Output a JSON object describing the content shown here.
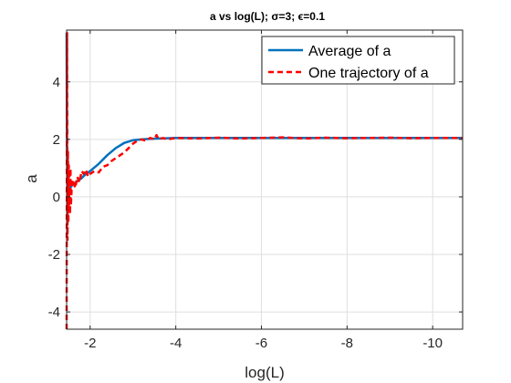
{
  "chart_data": {
    "type": "line",
    "title": "a vs log(L); σ=3; ϵ=0.1",
    "xlabel": "log(L)",
    "ylabel": "a",
    "x_reversed": true,
    "xlim": [
      -1.45,
      -10.7
    ],
    "ylim": [
      -4.6,
      5.8
    ],
    "xticks": [
      -2,
      -4,
      -6,
      -8,
      -10
    ],
    "xtick_labels": [
      "-2",
      "-4",
      "-6",
      "-8",
      "-10"
    ],
    "yticks": [
      -4,
      -2,
      0,
      2,
      4
    ],
    "ytick_labels": [
      "-4",
      "-2",
      "0",
      "2",
      "4"
    ],
    "grid": true,
    "legend_position": "top-right",
    "series": [
      {
        "name": "Average of a",
        "color": "#0072BD",
        "style": "solid",
        "x": [
          -1.45,
          -1.46,
          -1.47,
          -1.48,
          -1.5,
          -1.55,
          -1.6,
          -1.7,
          -1.8,
          -1.9,
          -2.0,
          -2.2,
          -2.4,
          -2.6,
          -2.8,
          -3.0,
          -3.2,
          -3.4,
          -3.6,
          -3.8,
          -4.0,
          -5.0,
          -6.0,
          -7.0,
          -8.0,
          -9.0,
          -10.0,
          -10.7
        ],
        "y": [
          5.7,
          1.5,
          0.3,
          0.0,
          0.2,
          0.35,
          0.45,
          0.55,
          0.65,
          0.8,
          0.9,
          1.15,
          1.45,
          1.7,
          1.88,
          1.97,
          2.0,
          2.02,
          2.03,
          2.04,
          2.05,
          2.05,
          2.05,
          2.05,
          2.05,
          2.05,
          2.05,
          2.05
        ]
      },
      {
        "name": "One trajectory of a",
        "color": "#FF0000",
        "style": "dashed",
        "x": [
          -1.45,
          -1.46,
          -1.47,
          -1.48,
          -1.49,
          -1.5,
          -1.51,
          -1.52,
          -1.53,
          -1.54,
          -1.55,
          -1.57,
          -1.6,
          -1.65,
          -1.7,
          -1.75,
          -1.8,
          -1.85,
          -1.9,
          -1.95,
          -2.0,
          -2.1,
          -2.2,
          -2.3,
          -2.4,
          -2.5,
          -2.6,
          -2.7,
          -2.8,
          -2.9,
          -3.0,
          -3.1,
          -3.2,
          -3.3,
          -3.4,
          -3.5,
          -3.55,
          -3.6,
          -3.7,
          -3.8,
          -4.0,
          -4.5,
          -5.0,
          -5.5,
          -6.0,
          -6.5,
          -7.0,
          -7.5,
          -8.0,
          -8.5,
          -9.0,
          -9.5,
          -10.0,
          -10.7
        ],
        "y": [
          -4.6,
          5.7,
          -1.5,
          1.6,
          -0.9,
          1.1,
          -0.5,
          0.8,
          -0.6,
          1.0,
          -0.3,
          0.4,
          0.6,
          0.3,
          0.7,
          0.5,
          0.9,
          0.8,
          0.95,
          0.7,
          0.8,
          0.9,
          0.85,
          1.05,
          1.1,
          1.25,
          1.35,
          1.45,
          1.55,
          1.7,
          1.85,
          1.95,
          2.0,
          1.95,
          2.05,
          2.0,
          2.15,
          2.0,
          2.05,
          2.0,
          2.05,
          2.03,
          2.06,
          2.03,
          2.05,
          2.07,
          2.03,
          2.06,
          2.04,
          2.05,
          2.06,
          2.04,
          2.05,
          2.05
        ]
      }
    ]
  }
}
